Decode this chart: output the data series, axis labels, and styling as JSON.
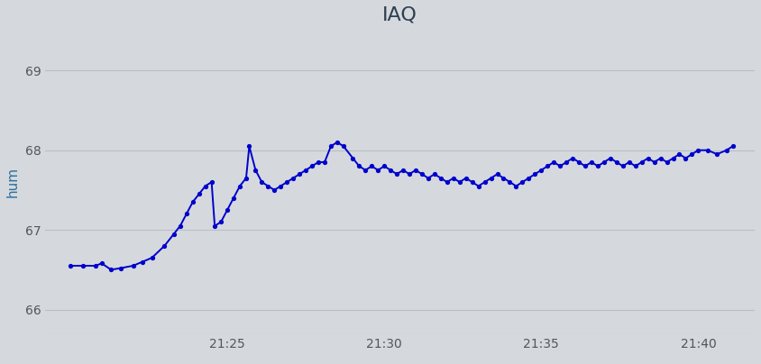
{
  "title": "IAQ",
  "ylabel": "hum",
  "background_color": "#d5d9dd",
  "axes_bg_color": "#d5d9dd",
  "line_color": "#0000cc",
  "dot_color": "#0000cc",
  "title_color": "#2e3f52",
  "label_color": "#2e70a0",
  "tick_color": "#555555",
  "grid_color": "#b8bfc7",
  "ylim": [
    65.7,
    69.5
  ],
  "yticks": [
    66,
    67,
    68,
    69
  ],
  "title_fontsize": 16,
  "ylabel_fontsize": 11,
  "x_tick_positions": [
    1325,
    1330,
    1335,
    1340
  ],
  "x_tick_labels": [
    "21:25",
    "21:30",
    "21:35",
    "21:40"
  ],
  "xlim": [
    1319.2,
    1341.8
  ],
  "key_points": [
    [
      1320.0,
      66.55
    ],
    [
      1320.4,
      66.55
    ],
    [
      1320.8,
      66.55
    ],
    [
      1321.0,
      66.58
    ],
    [
      1321.3,
      66.5
    ],
    [
      1321.6,
      66.52
    ],
    [
      1322.0,
      66.55
    ],
    [
      1322.3,
      66.6
    ],
    [
      1322.6,
      66.65
    ],
    [
      1323.0,
      66.8
    ],
    [
      1323.3,
      66.95
    ],
    [
      1323.5,
      67.05
    ],
    [
      1323.7,
      67.2
    ],
    [
      1323.9,
      67.35
    ],
    [
      1324.1,
      67.45
    ],
    [
      1324.3,
      67.55
    ],
    [
      1324.5,
      67.6
    ],
    [
      1324.6,
      67.05
    ],
    [
      1324.8,
      67.1
    ],
    [
      1325.0,
      67.25
    ],
    [
      1325.2,
      67.4
    ],
    [
      1325.4,
      67.55
    ],
    [
      1325.6,
      67.65
    ],
    [
      1325.7,
      68.05
    ],
    [
      1325.9,
      67.75
    ],
    [
      1326.1,
      67.6
    ],
    [
      1326.3,
      67.55
    ],
    [
      1326.5,
      67.5
    ],
    [
      1326.7,
      67.55
    ],
    [
      1326.9,
      67.6
    ],
    [
      1327.1,
      67.65
    ],
    [
      1327.3,
      67.7
    ],
    [
      1327.5,
      67.75
    ],
    [
      1327.7,
      67.8
    ],
    [
      1327.9,
      67.85
    ],
    [
      1328.1,
      67.85
    ],
    [
      1328.3,
      68.05
    ],
    [
      1328.5,
      68.1
    ],
    [
      1328.7,
      68.05
    ],
    [
      1329.0,
      67.9
    ],
    [
      1329.2,
      67.8
    ],
    [
      1329.4,
      67.75
    ],
    [
      1329.6,
      67.8
    ],
    [
      1329.8,
      67.75
    ],
    [
      1330.0,
      67.8
    ],
    [
      1330.2,
      67.75
    ],
    [
      1330.4,
      67.7
    ],
    [
      1330.6,
      67.75
    ],
    [
      1330.8,
      67.7
    ],
    [
      1331.0,
      67.75
    ],
    [
      1331.2,
      67.7
    ],
    [
      1331.4,
      67.65
    ],
    [
      1331.6,
      67.7
    ],
    [
      1331.8,
      67.65
    ],
    [
      1332.0,
      67.6
    ],
    [
      1332.2,
      67.65
    ],
    [
      1332.4,
      67.6
    ],
    [
      1332.6,
      67.65
    ],
    [
      1332.8,
      67.6
    ],
    [
      1333.0,
      67.55
    ],
    [
      1333.2,
      67.6
    ],
    [
      1333.4,
      67.65
    ],
    [
      1333.6,
      67.7
    ],
    [
      1333.8,
      67.65
    ],
    [
      1334.0,
      67.6
    ],
    [
      1334.2,
      67.55
    ],
    [
      1334.4,
      67.6
    ],
    [
      1334.6,
      67.65
    ],
    [
      1334.8,
      67.7
    ],
    [
      1335.0,
      67.75
    ],
    [
      1335.2,
      67.8
    ],
    [
      1335.4,
      67.85
    ],
    [
      1335.6,
      67.8
    ],
    [
      1335.8,
      67.85
    ],
    [
      1336.0,
      67.9
    ],
    [
      1336.2,
      67.85
    ],
    [
      1336.4,
      67.8
    ],
    [
      1336.6,
      67.85
    ],
    [
      1336.8,
      67.8
    ],
    [
      1337.0,
      67.85
    ],
    [
      1337.2,
      67.9
    ],
    [
      1337.4,
      67.85
    ],
    [
      1337.6,
      67.8
    ],
    [
      1337.8,
      67.85
    ],
    [
      1338.0,
      67.8
    ],
    [
      1338.2,
      67.85
    ],
    [
      1338.4,
      67.9
    ],
    [
      1338.6,
      67.85
    ],
    [
      1338.8,
      67.9
    ],
    [
      1339.0,
      67.85
    ],
    [
      1339.2,
      67.9
    ],
    [
      1339.4,
      67.95
    ],
    [
      1339.6,
      67.9
    ],
    [
      1339.8,
      67.95
    ],
    [
      1340.0,
      68.0
    ],
    [
      1340.3,
      68.0
    ],
    [
      1340.6,
      67.95
    ],
    [
      1340.9,
      68.0
    ],
    [
      1341.1,
      68.05
    ]
  ]
}
